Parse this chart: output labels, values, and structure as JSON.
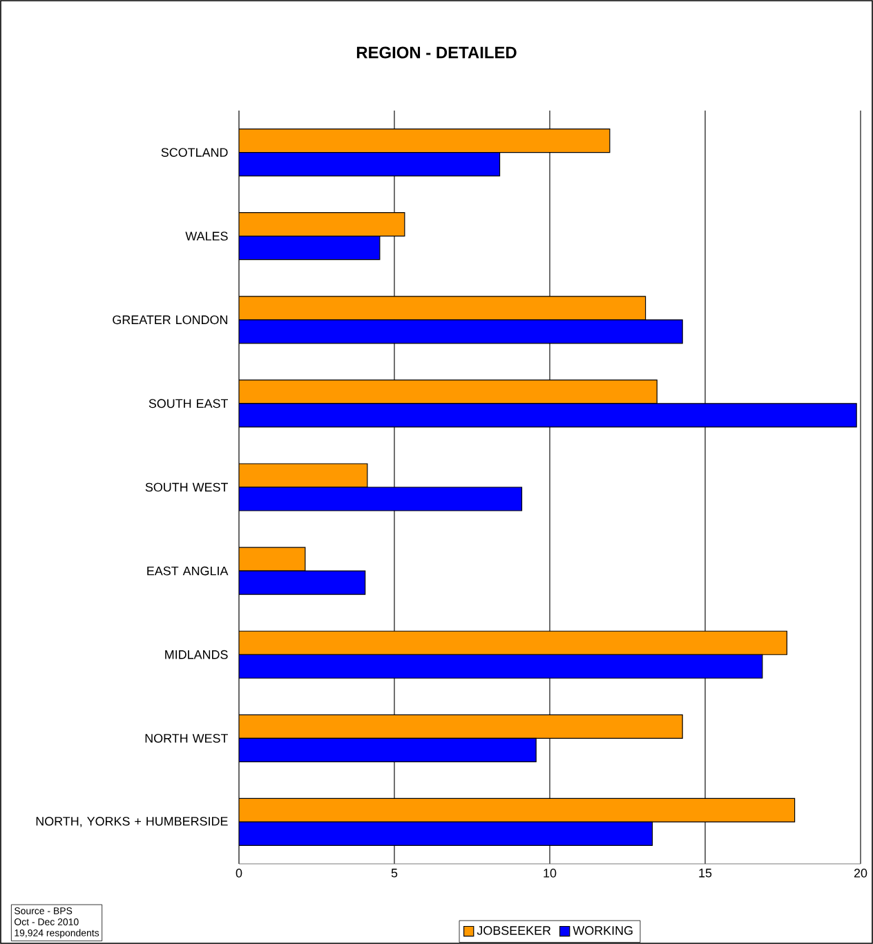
{
  "chart_data": {
    "type": "bar",
    "orientation": "horizontal",
    "title": "REGION - DETAILED",
    "categories": [
      "SCOTLAND",
      "WALES",
      "GREATER LONDON",
      "SOUTH EAST",
      "SOUTH WEST",
      "EAST ANGLIA",
      "MIDLANDS",
      "NORTH WEST",
      "NORTH, YORKS + HUMBERSIDE"
    ],
    "series": [
      {
        "name": "JOBSEEKER",
        "color": "#ff9900",
        "values": [
          11.93,
          5.33,
          13.08,
          13.45,
          4.13,
          2.13,
          17.63,
          14.27,
          17.88
        ]
      },
      {
        "name": "WORKING",
        "color": "#0000ff",
        "values": [
          8.39,
          4.53,
          14.27,
          19.87,
          9.1,
          4.06,
          16.84,
          9.56,
          13.3
        ]
      }
    ],
    "xlim": [
      0,
      20
    ],
    "xticks": [
      0,
      5,
      10,
      15,
      20
    ],
    "grid": "x",
    "legend": "bottom",
    "annotations": [
      "Source - BPS",
      "Oct - Dec 2010",
      "19,924 respondents"
    ]
  }
}
